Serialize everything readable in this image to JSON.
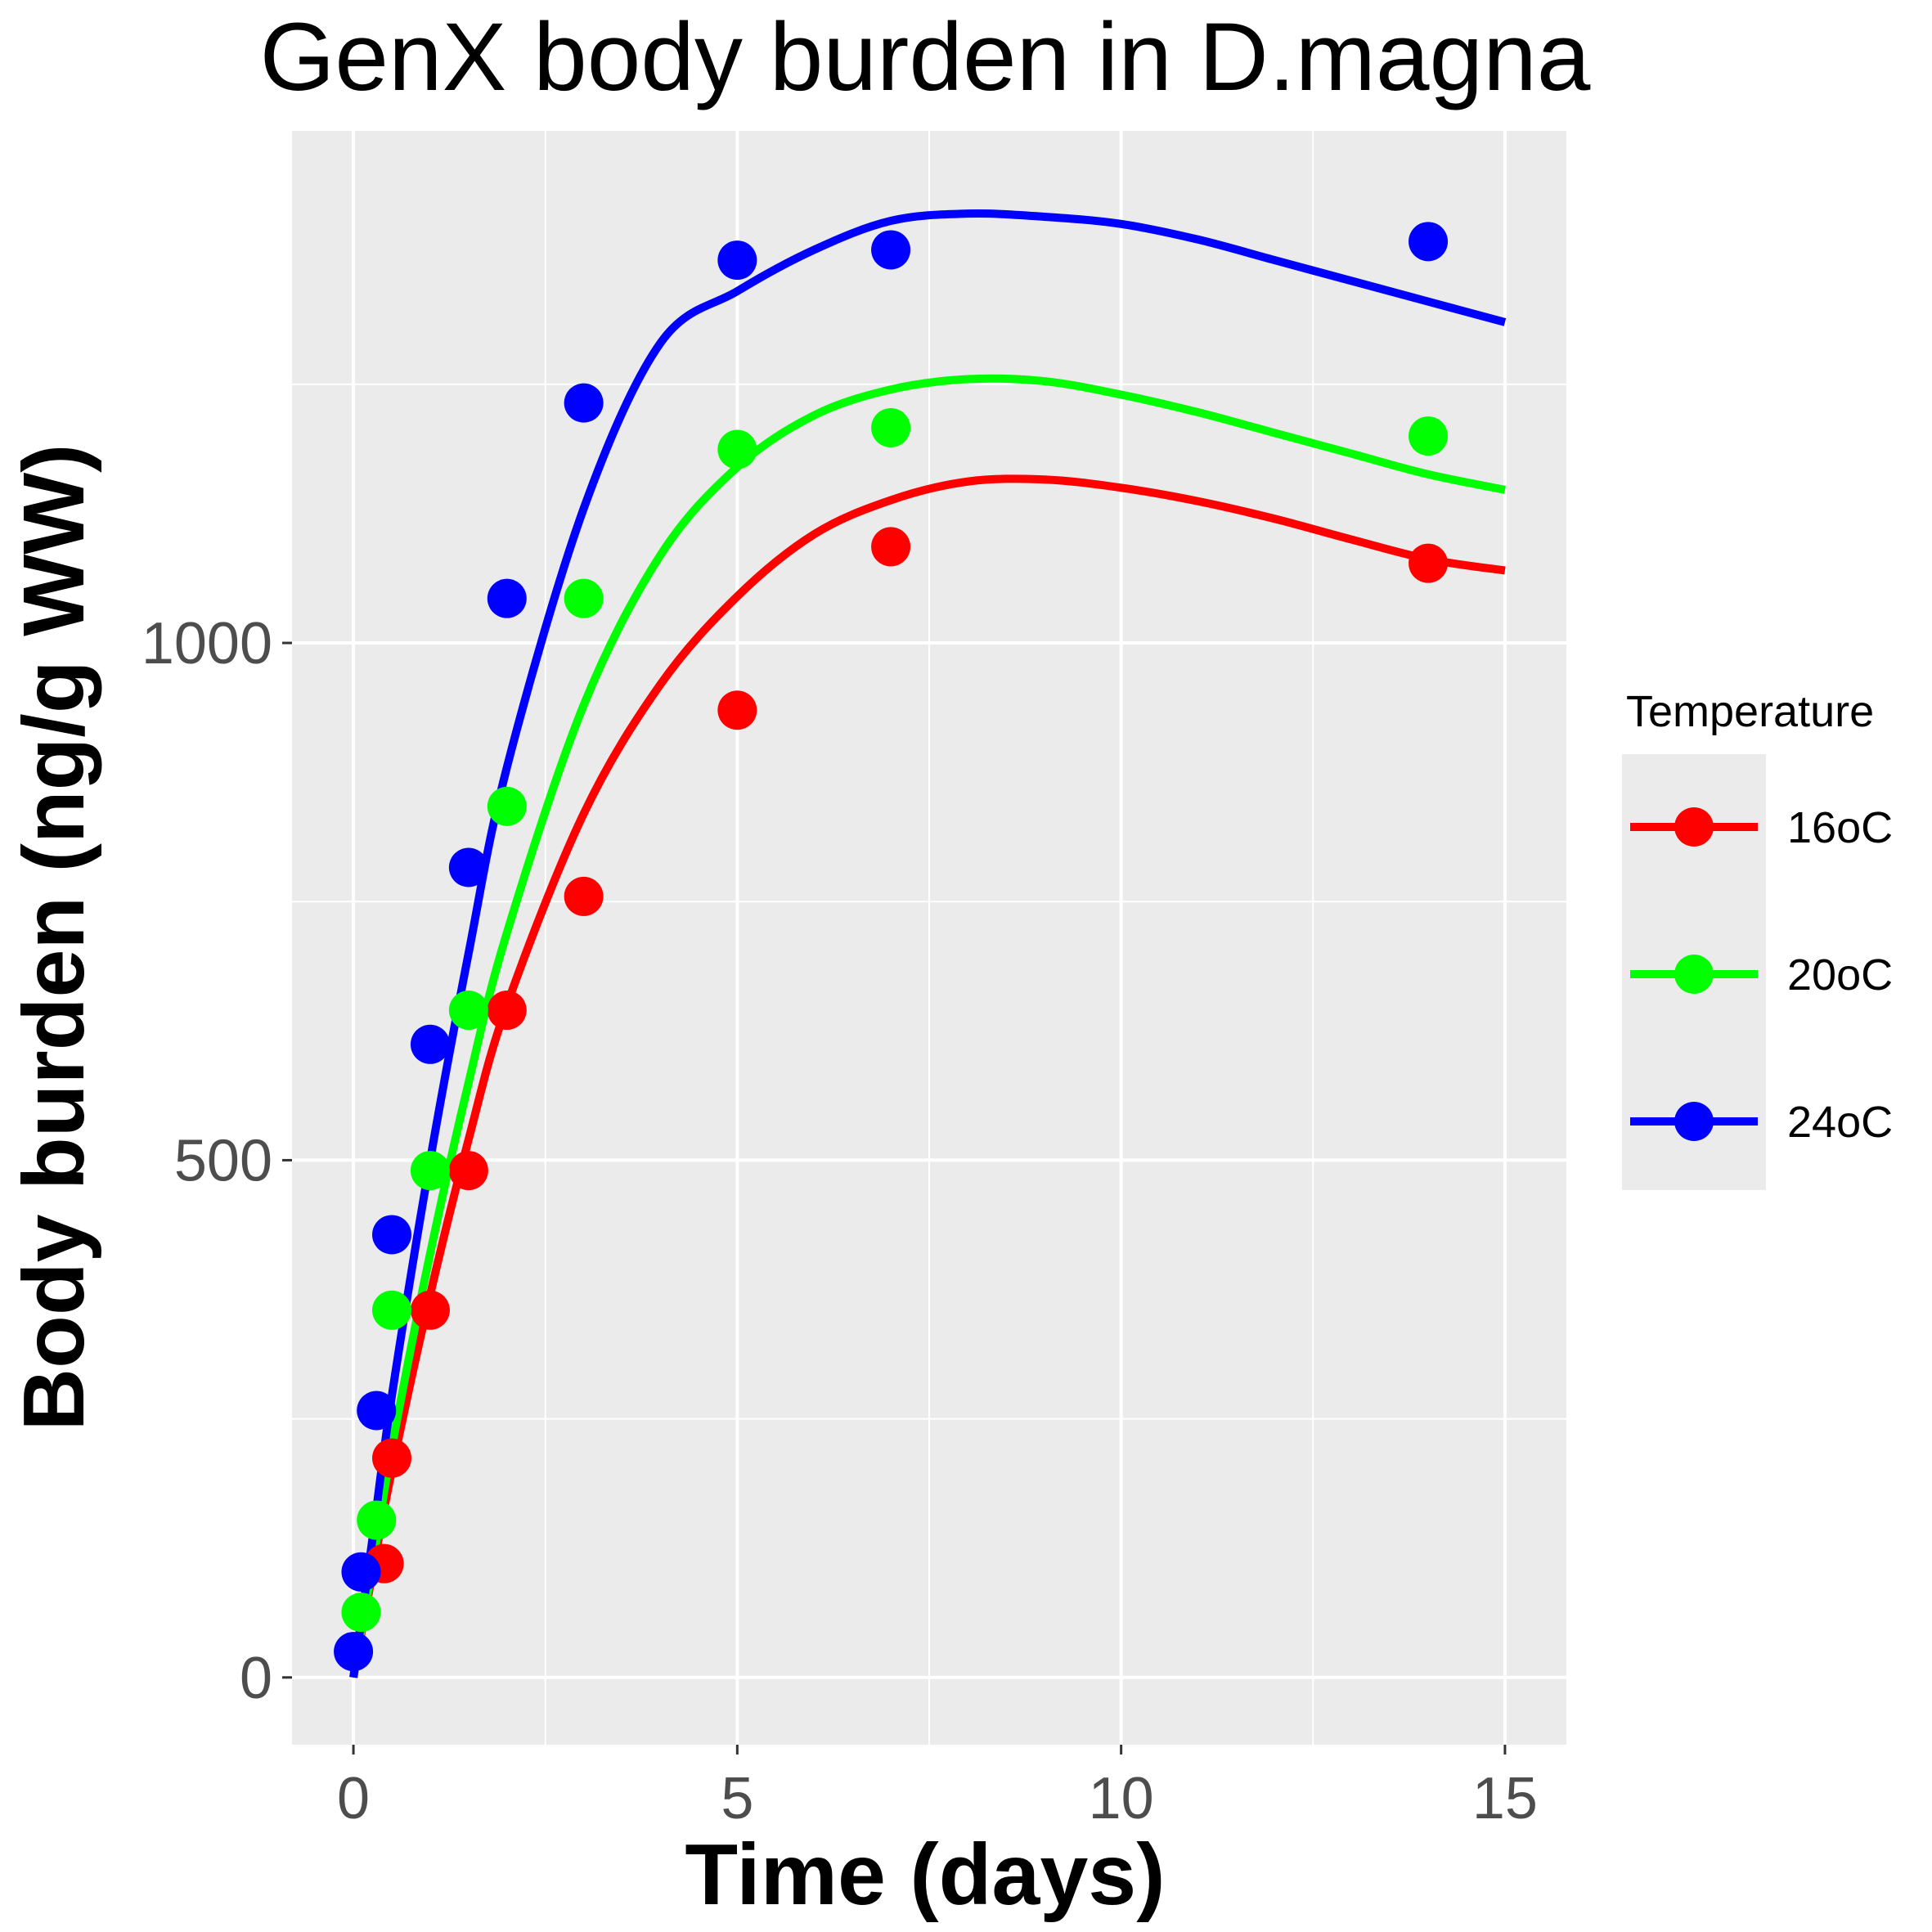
{
  "chart_data": {
    "type": "line",
    "title": "GenX body burden in D.magna",
    "xlabel": "Time (days)",
    "ylabel": "Body burden (ng/g WW)",
    "xlim": [
      -0.8,
      15.8
    ],
    "ylim": [
      -65,
      1495
    ],
    "x_ticks": [
      0,
      5,
      10,
      15
    ],
    "x_tick_labels": [
      "0",
      "5",
      "10",
      "15"
    ],
    "y_ticks": [
      0,
      500,
      1000
    ],
    "y_tick_labels": [
      "0",
      "500",
      "1000"
    ],
    "grid": true,
    "legend": {
      "title": "Temperature",
      "position": "right"
    },
    "series": [
      {
        "name": "16oC",
        "color": "#ff0000",
        "points": [
          [
            0.4,
            110
          ],
          [
            0.5,
            212
          ],
          [
            1.0,
            355
          ],
          [
            1.5,
            490
          ],
          [
            2.0,
            645
          ],
          [
            3.0,
            755
          ],
          [
            5.0,
            935
          ],
          [
            7.0,
            1093
          ],
          [
            14.0,
            1077
          ]
        ],
        "curve": [
          [
            0,
            0
          ],
          [
            0.25,
            102
          ],
          [
            0.5,
            200
          ],
          [
            1.0,
            370
          ],
          [
            1.5,
            520
          ],
          [
            2.0,
            650
          ],
          [
            3.0,
            835
          ],
          [
            4.0,
            960
          ],
          [
            5.0,
            1045
          ],
          [
            6.0,
            1105
          ],
          [
            7.0,
            1138
          ],
          [
            8.0,
            1156
          ],
          [
            9.0,
            1158
          ],
          [
            10.0,
            1150
          ],
          [
            11.0,
            1137
          ],
          [
            12.0,
            1120
          ],
          [
            13.0,
            1100
          ],
          [
            14.0,
            1081
          ],
          [
            15.0,
            1070
          ]
        ]
      },
      {
        "name": "20oC",
        "color": "#00ff00",
        "points": [
          [
            0.1,
            63
          ],
          [
            0.3,
            152
          ],
          [
            0.5,
            355
          ],
          [
            1.0,
            490
          ],
          [
            1.5,
            645
          ],
          [
            2.0,
            842
          ],
          [
            3.0,
            1043
          ],
          [
            5.0,
            1187
          ],
          [
            7.0,
            1208
          ],
          [
            14.0,
            1200
          ]
        ],
        "curve": [
          [
            0,
            0
          ],
          [
            0.25,
            110
          ],
          [
            0.5,
            222
          ],
          [
            1.0,
            410
          ],
          [
            1.5,
            575
          ],
          [
            2.0,
            720
          ],
          [
            3.0,
            940
          ],
          [
            4.0,
            1085
          ],
          [
            5.0,
            1170
          ],
          [
            6.0,
            1220
          ],
          [
            7.0,
            1245
          ],
          [
            8.0,
            1255
          ],
          [
            9.0,
            1253
          ],
          [
            10.0,
            1240
          ],
          [
            11.0,
            1223
          ],
          [
            12.0,
            1203
          ],
          [
            13.0,
            1183
          ],
          [
            14.0,
            1163
          ],
          [
            15.0,
            1148
          ]
        ]
      },
      {
        "name": "24oC",
        "color": "#0000ff",
        "points": [
          [
            0.0,
            25
          ],
          [
            0.1,
            102
          ],
          [
            0.3,
            258
          ],
          [
            0.5,
            428
          ],
          [
            1.0,
            612
          ],
          [
            1.5,
            783
          ],
          [
            2.0,
            1043
          ],
          [
            3.0,
            1232
          ],
          [
            5.0,
            1370
          ],
          [
            7.0,
            1380
          ],
          [
            14.0,
            1388
          ]
        ],
        "curve": [
          [
            0,
            0
          ],
          [
            0.25,
            135
          ],
          [
            0.5,
            272
          ],
          [
            1.0,
            500
          ],
          [
            1.5,
            700
          ],
          [
            2.0,
            880
          ],
          [
            3.0,
            1130
          ],
          [
            4.0,
            1290
          ],
          [
            5.0,
            1340
          ],
          [
            6.0,
            1380
          ],
          [
            7.0,
            1408
          ],
          [
            8.0,
            1415
          ],
          [
            9.0,
            1412
          ],
          [
            10.0,
            1405
          ],
          [
            11.0,
            1390
          ],
          [
            12.0,
            1370
          ],
          [
            13.0,
            1350
          ],
          [
            14.0,
            1330
          ],
          [
            15.0,
            1310
          ]
        ]
      }
    ]
  }
}
